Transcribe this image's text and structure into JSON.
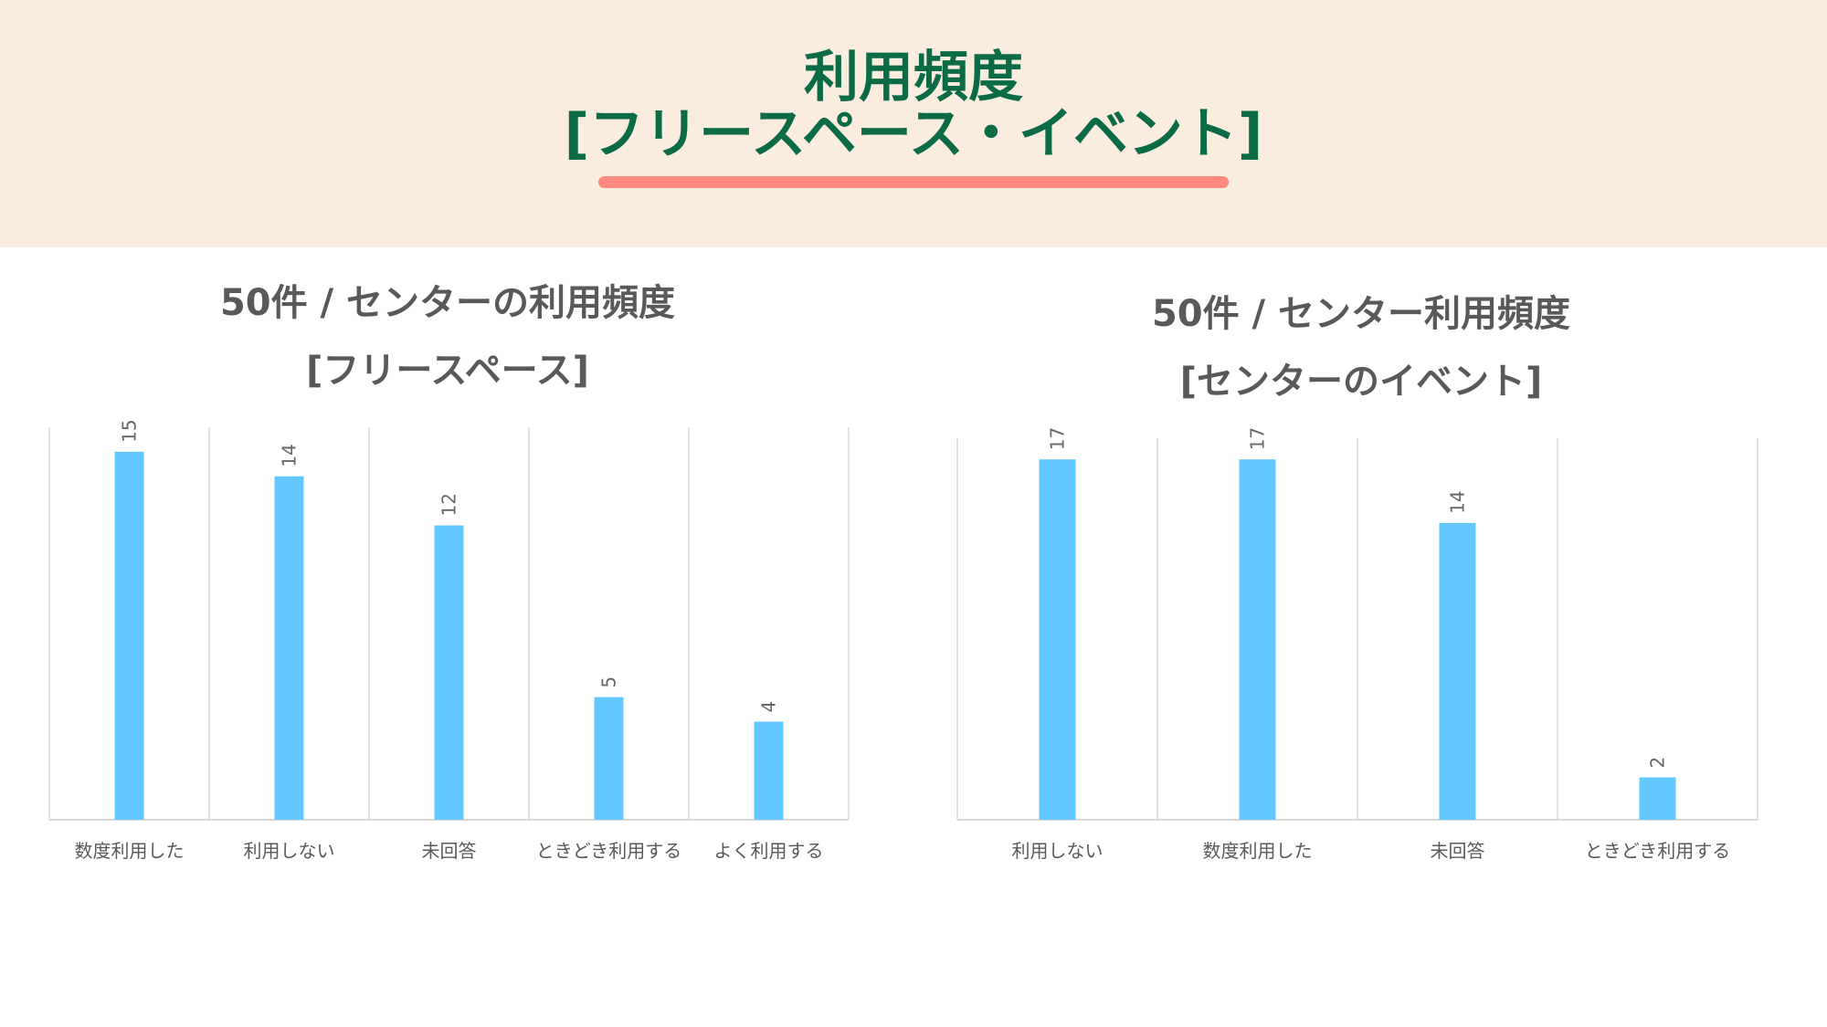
{
  "header": {
    "title_line1": "利用頻度",
    "title_line2": "[フリースペース・イベント]"
  },
  "colors": {
    "header_bg": "#faede0",
    "title": "#0b6b45",
    "underline": "#ff8a80",
    "bar": "#62c8ff",
    "grid": "#d9d9d9",
    "text": "#595959"
  },
  "chart_data": [
    {
      "type": "bar",
      "title_line1": "50件 / センターの利用頻度",
      "title_line2": "[フリースペース]",
      "categories": [
        "数度利用した",
        "利用しない",
        "未回答",
        "ときどき利用する",
        "よく利用する"
      ],
      "values": [
        15,
        14,
        12,
        5,
        4
      ],
      "ylim": [
        0,
        16
      ],
      "data_labels": true,
      "grid": "vertical category separators"
    },
    {
      "type": "bar",
      "title_line1": "50件 / センター利用頻度",
      "title_line2": "[センターのイベント]",
      "categories": [
        "利用しない",
        "数度利用した",
        "未回答",
        "ときどき利用する"
      ],
      "values": [
        17,
        17,
        14,
        2
      ],
      "ylim": [
        0,
        18
      ],
      "data_labels": true,
      "grid": "vertical category separators"
    }
  ]
}
